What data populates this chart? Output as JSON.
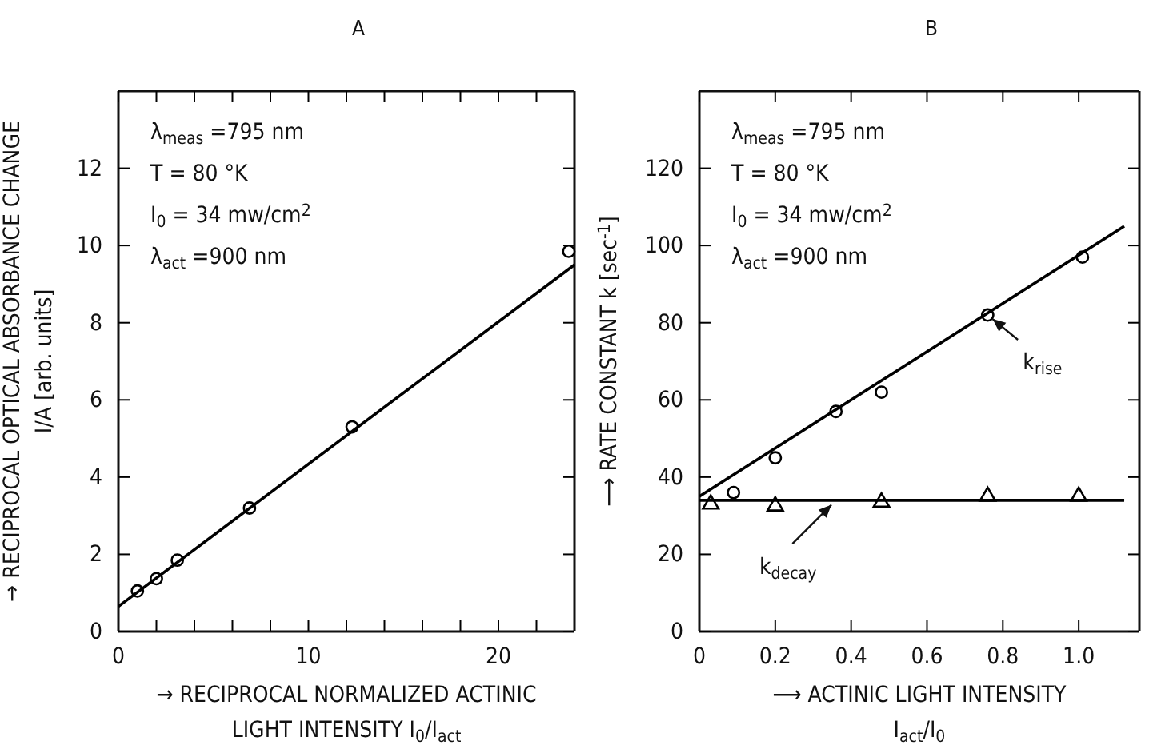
{
  "chart_data": [
    {
      "type": "scatter",
      "title": "A",
      "xlabel": "→ RECIPROCAL NORMALIZED ACTINIC\nLIGHT INTENSITY I$_{0}$/I$_{act}$",
      "ylabel": "→ RECIPROCAL OPTICAL ABSORBANCE CHANGE\nI/A [arb. units]",
      "xlim": [
        0,
        24
      ],
      "ylim": [
        0,
        14
      ],
      "xticks": [
        0,
        {
          "value": 2,
          "label": null
        },
        {
          "value": 4,
          "label": null
        },
        {
          "value": 6,
          "label": null
        },
        {
          "value": 8,
          "label": null
        },
        10,
        {
          "value": 12,
          "label": null
        },
        {
          "value": 14,
          "label": null
        },
        {
          "value": 16,
          "label": null
        },
        {
          "value": 18,
          "label": null
        },
        20,
        {
          "value": 22,
          "label": null
        }
      ],
      "yticks": [
        0,
        2,
        4,
        6,
        8,
        10,
        12
      ],
      "grid": false,
      "annotations": [
        "λ$_{meas}$ =795 nm",
        "T = 80 °K",
        "I$_{0}$ = 34 mw/cm$^{2}$",
        "λ$_{act}$ =900 nm"
      ],
      "series": [
        {
          "marker": "circle",
          "color": "#000000",
          "x": [
            1.0,
            2.0,
            3.1,
            6.9,
            12.3,
            23.7
          ],
          "values": [
            1.05,
            1.37,
            1.85,
            3.2,
            5.3,
            9.85
          ]
        },
        {
          "type": "line",
          "marker": "none",
          "color": "#000000",
          "x": [
            0,
            24
          ],
          "values": [
            0.65,
            9.5
          ]
        }
      ]
    },
    {
      "type": "scatter",
      "title": "B",
      "xlabel": "⟶ ACTINIC LIGHT INTENSITY\nI$_{act}$/I$_{0}$",
      "ylabel": "⟶ RATE CONSTANT k [sec$^{-1}$]",
      "xlim": [
        0,
        1.16
      ],
      "ylim": [
        0,
        140
      ],
      "xticks": [
        0,
        0.2,
        0.4,
        0.6,
        0.8,
        {
          "value": 1.0,
          "label": "1.0"
        }
      ],
      "yticks": [
        0,
        20,
        40,
        60,
        80,
        100,
        120
      ],
      "grid": false,
      "annotations": [
        "λ$_{meas}$ =795 nm",
        "T = 80 °K",
        "I$_{0}$ = 34 mw/cm$^{2}$",
        "λ$_{act}$ =900 nm",
        {
          "text": "k$_{rise}$",
          "x": 0.76,
          "y": 82
        },
        {
          "text": "k$_{decay}$",
          "x": 0.36,
          "y": 34
        }
      ],
      "series": [
        {
          "marker": "circle",
          "color": "#000000",
          "x": [
            0.09,
            0.2,
            0.36,
            0.48,
            0.76,
            1.01
          ],
          "values": [
            36,
            45,
            57,
            62,
            82,
            97
          ]
        },
        {
          "marker": "triangle",
          "color": "#000000",
          "x": [
            0.03,
            0.2,
            0.48,
            0.76,
            1.0
          ],
          "values": [
            33,
            32.5,
            33.5,
            35,
            35
          ]
        },
        {
          "type": "line",
          "marker": "none",
          "color": "#000000",
          "x": [
            0,
            1.12
          ],
          "values": [
            35,
            105
          ]
        },
        {
          "type": "line",
          "marker": "none",
          "color": "#000000",
          "x": [
            0,
            1.12
          ],
          "values": [
            34,
            34
          ]
        }
      ]
    }
  ]
}
